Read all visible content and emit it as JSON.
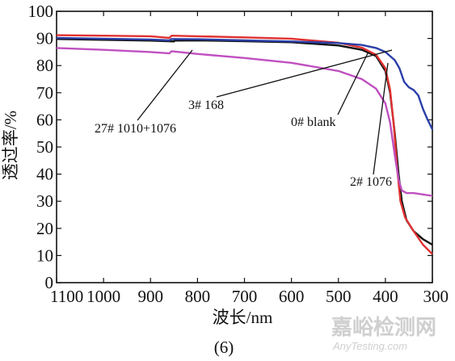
{
  "chart_data": {
    "type": "line",
    "xlabel": "波长/nm",
    "ylabel": "透过率/%",
    "caption": "(6)",
    "x_reversed": true,
    "xlim": [
      1100,
      300
    ],
    "ylim": [
      0,
      100
    ],
    "x_ticks": [
      1100,
      1000,
      900,
      800,
      700,
      600,
      500,
      400,
      300
    ],
    "y_ticks": [
      0,
      10,
      20,
      30,
      40,
      50,
      60,
      70,
      80,
      90,
      100
    ],
    "series": [
      {
        "name": "0# blank",
        "color": "#111111",
        "points": [
          [
            1100,
            89.8
          ],
          [
            1000,
            89.5
          ],
          [
            900,
            89.2
          ],
          [
            850,
            88.9
          ],
          [
            849,
            89.2
          ],
          [
            800,
            89.3
          ],
          [
            700,
            89.0
          ],
          [
            600,
            88.6
          ],
          [
            500,
            87.4
          ],
          [
            450,
            85.8
          ],
          [
            420,
            83.5
          ],
          [
            400,
            78.0
          ],
          [
            390,
            70.0
          ],
          [
            380,
            55.0
          ],
          [
            372,
            40.0
          ],
          [
            365,
            30.0
          ],
          [
            355,
            23.0
          ],
          [
            340,
            19.0
          ],
          [
            320,
            16.0
          ],
          [
            300,
            14.0
          ]
        ]
      },
      {
        "name": "2# 1076",
        "color": "#e03131",
        "points": [
          [
            1100,
            91.2
          ],
          [
            1000,
            91.0
          ],
          [
            900,
            90.8
          ],
          [
            860,
            90.2
          ],
          [
            855,
            91.0
          ],
          [
            800,
            90.8
          ],
          [
            700,
            90.4
          ],
          [
            600,
            89.9
          ],
          [
            500,
            88.4
          ],
          [
            450,
            86.6
          ],
          [
            420,
            84.0
          ],
          [
            400,
            79.0
          ],
          [
            390,
            71.0
          ],
          [
            382,
            58.0
          ],
          [
            375,
            42.0
          ],
          [
            368,
            30.0
          ],
          [
            358,
            24.0
          ],
          [
            340,
            19.0
          ],
          [
            320,
            14.0
          ],
          [
            300,
            10.5
          ]
        ]
      },
      {
        "name": "3# 168",
        "color": "#2b3fa8",
        "points": [
          [
            1100,
            90.2
          ],
          [
            1000,
            89.9
          ],
          [
            900,
            89.6
          ],
          [
            860,
            89.3
          ],
          [
            855,
            89.8
          ],
          [
            800,
            89.7
          ],
          [
            700,
            89.3
          ],
          [
            600,
            88.9
          ],
          [
            500,
            88.3
          ],
          [
            450,
            87.6
          ],
          [
            420,
            86.5
          ],
          [
            400,
            85.0
          ],
          [
            380,
            82.0
          ],
          [
            370,
            79.0
          ],
          [
            360,
            74.0
          ],
          [
            350,
            72.0
          ],
          [
            340,
            71.0
          ],
          [
            330,
            69.0
          ],
          [
            320,
            64.0
          ],
          [
            310,
            60.0
          ],
          [
            300,
            56.5
          ]
        ]
      },
      {
        "name": "27# 1010+1076",
        "color": "#c050c0",
        "points": [
          [
            1100,
            86.5
          ],
          [
            1000,
            85.8
          ],
          [
            900,
            85.0
          ],
          [
            860,
            84.5
          ],
          [
            855,
            85.3
          ],
          [
            800,
            84.3
          ],
          [
            700,
            82.8
          ],
          [
            600,
            81.0
          ],
          [
            500,
            78.0
          ],
          [
            450,
            75.0
          ],
          [
            420,
            71.5
          ],
          [
            400,
            66.0
          ],
          [
            390,
            59.0
          ],
          [
            380,
            47.0
          ],
          [
            372,
            38.0
          ],
          [
            365,
            34.0
          ],
          [
            355,
            33.0
          ],
          [
            340,
            33.0
          ],
          [
            320,
            32.5
          ],
          [
            300,
            32.0
          ]
        ]
      }
    ],
    "annotations": [
      {
        "text": "27# 1010+1076",
        "series": "27# 1010+1076"
      },
      {
        "text": "3# 168",
        "series": "3# 168"
      },
      {
        "text": "0# blank",
        "series": "0# blank"
      },
      {
        "text": "2# 1076",
        "series": "2# 1076"
      }
    ]
  },
  "watermark": {
    "cn": "嘉峪检测网",
    "en": "AnyTesting.com"
  }
}
